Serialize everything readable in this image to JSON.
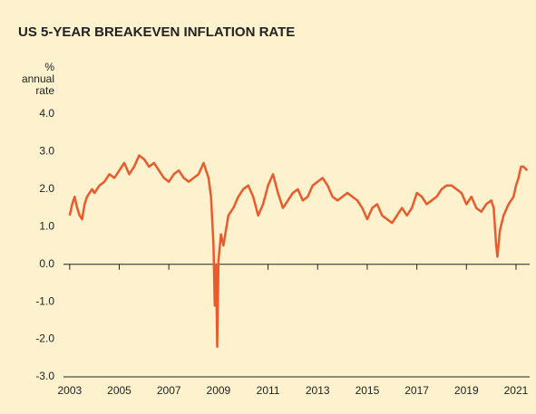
{
  "chart_data": {
    "type": "line",
    "title": "US 5-YEAR BREAKEVEN INFLATION RATE",
    "ylabel": [
      "%",
      "annual",
      "rate"
    ],
    "color": "#eb5a2c",
    "x": [
      2003.0,
      2003.1,
      2003.2,
      2003.3,
      2003.4,
      2003.5,
      2003.6,
      2003.7,
      2003.9,
      2004.0,
      2004.2,
      2004.4,
      2004.6,
      2004.8,
      2005.0,
      2005.2,
      2005.4,
      2005.6,
      2005.8,
      2006.0,
      2006.2,
      2006.4,
      2006.6,
      2006.8,
      2007.0,
      2007.2,
      2007.4,
      2007.6,
      2007.8,
      2008.0,
      2008.2,
      2008.4,
      2008.6,
      2008.7,
      2008.8,
      2008.85,
      2008.9,
      2008.95,
      2009.0,
      2009.1,
      2009.2,
      2009.3,
      2009.4,
      2009.6,
      2009.8,
      2010.0,
      2010.2,
      2010.4,
      2010.6,
      2010.8,
      2011.0,
      2011.2,
      2011.4,
      2011.6,
      2011.8,
      2012.0,
      2012.2,
      2012.4,
      2012.6,
      2012.8,
      2013.0,
      2013.2,
      2013.4,
      2013.6,
      2013.8,
      2014.0,
      2014.2,
      2014.4,
      2014.6,
      2014.8,
      2015.0,
      2015.2,
      2015.4,
      2015.6,
      2015.8,
      2016.0,
      2016.2,
      2016.4,
      2016.6,
      2016.8,
      2017.0,
      2017.2,
      2017.4,
      2017.6,
      2017.8,
      2018.0,
      2018.2,
      2018.4,
      2018.6,
      2018.8,
      2019.0,
      2019.2,
      2019.4,
      2019.6,
      2019.8,
      2020.0,
      2020.1,
      2020.2,
      2020.25,
      2020.35,
      2020.5,
      2020.7,
      2020.9,
      2021.0,
      2021.1,
      2021.2,
      2021.3,
      2021.45
    ],
    "values": [
      1.3,
      1.6,
      1.8,
      1.5,
      1.3,
      1.2,
      1.6,
      1.8,
      2.0,
      1.9,
      2.1,
      2.2,
      2.4,
      2.3,
      2.5,
      2.7,
      2.4,
      2.6,
      2.9,
      2.8,
      2.6,
      2.7,
      2.5,
      2.3,
      2.2,
      2.4,
      2.5,
      2.3,
      2.2,
      2.3,
      2.4,
      2.7,
      2.3,
      1.8,
      0.5,
      -1.1,
      0.0,
      -2.2,
      0.1,
      0.8,
      0.5,
      0.9,
      1.3,
      1.5,
      1.8,
      2.0,
      2.1,
      1.8,
      1.3,
      1.6,
      2.1,
      2.4,
      1.9,
      1.5,
      1.7,
      1.9,
      2.0,
      1.7,
      1.8,
      2.1,
      2.2,
      2.3,
      2.1,
      1.8,
      1.7,
      1.8,
      1.9,
      1.8,
      1.7,
      1.5,
      1.2,
      1.5,
      1.6,
      1.3,
      1.2,
      1.1,
      1.3,
      1.5,
      1.3,
      1.5,
      1.9,
      1.8,
      1.6,
      1.7,
      1.8,
      2.0,
      2.1,
      2.1,
      2.0,
      1.9,
      1.6,
      1.8,
      1.5,
      1.4,
      1.6,
      1.7,
      1.5,
      0.5,
      0.2,
      0.9,
      1.3,
      1.6,
      1.8,
      2.1,
      2.3,
      2.6,
      2.6,
      2.5
    ],
    "xlim": [
      2002.75,
      2021.55
    ],
    "xticks": [
      2003,
      2005,
      2007,
      2009,
      2011,
      2013,
      2015,
      2017,
      2019,
      2021
    ],
    "ylim": [
      -3,
      4
    ],
    "yticks": [
      {
        "value": -3,
        "label": "-3.0"
      },
      {
        "value": -2,
        "label": "-2.0"
      },
      {
        "value": -1,
        "label": "-1.0"
      },
      {
        "value": 0,
        "label": "0.0"
      },
      {
        "value": 1,
        "label": "1.0"
      },
      {
        "value": 2,
        "label": "2.0"
      },
      {
        "value": 3,
        "label": "3.0"
      },
      {
        "value": 4,
        "label": "4.0"
      }
    ],
    "grid": false
  }
}
